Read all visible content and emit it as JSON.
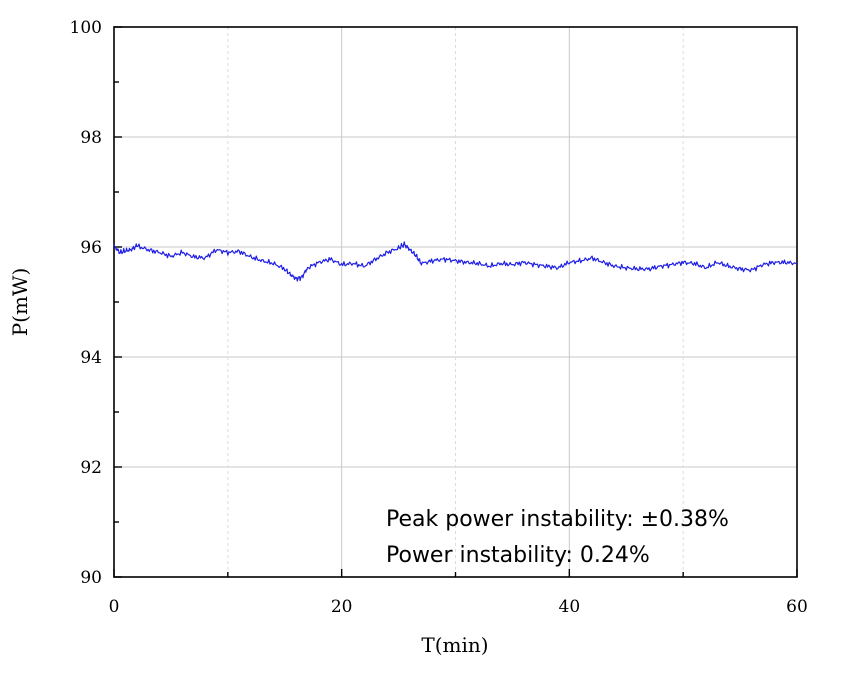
{
  "chart_data": {
    "type": "line",
    "xlabel": "T(min)",
    "ylabel": "P(mW)",
    "xlim": [
      0,
      60
    ],
    "ylim": [
      90,
      100
    ],
    "xticks": [
      0,
      20,
      40,
      60
    ],
    "yticks": [
      90,
      92,
      94,
      96,
      98,
      100
    ],
    "grid": true,
    "annotations": [
      "Peak power instability: ±0.38%",
      "Power instability: 0.24%"
    ],
    "series": [
      {
        "color": "#1f1fe6",
        "x": [
          0,
          0.5,
          1,
          1.5,
          2,
          3,
          4,
          5,
          6,
          7,
          8,
          9,
          10,
          11,
          12,
          13,
          14,
          15,
          15.5,
          16,
          16.5,
          17,
          18,
          19,
          20,
          21,
          22,
          23,
          24,
          25,
          25.5,
          26,
          26.5,
          27,
          28,
          29,
          30,
          31,
          32,
          33,
          34,
          35,
          36,
          37,
          38,
          39,
          40,
          41,
          42,
          43,
          44,
          45,
          46,
          47,
          48,
          49,
          50,
          51,
          52,
          53,
          54,
          55,
          56,
          57,
          58,
          59,
          60
        ],
        "y": [
          96.02,
          95.9,
          95.93,
          95.95,
          96.02,
          95.95,
          95.9,
          95.83,
          95.9,
          95.82,
          95.8,
          95.95,
          95.9,
          95.92,
          95.82,
          95.75,
          95.7,
          95.6,
          95.5,
          95.42,
          95.45,
          95.62,
          95.72,
          95.78,
          95.68,
          95.7,
          95.65,
          95.78,
          95.9,
          95.98,
          96.05,
          95.95,
          95.85,
          95.7,
          95.75,
          95.78,
          95.75,
          95.72,
          95.7,
          95.65,
          95.7,
          95.68,
          95.72,
          95.68,
          95.65,
          95.62,
          95.72,
          95.75,
          95.8,
          95.72,
          95.65,
          95.62,
          95.6,
          95.6,
          95.65,
          95.68,
          95.72,
          95.7,
          95.62,
          95.72,
          95.65,
          95.6,
          95.58,
          95.68,
          95.72,
          95.72,
          95.7
        ]
      }
    ]
  }
}
